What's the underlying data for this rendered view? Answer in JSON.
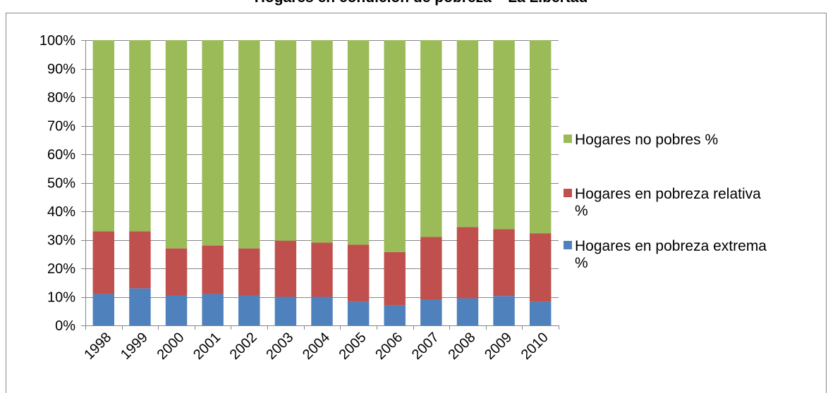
{
  "chart_data": {
    "type": "bar",
    "stacked": true,
    "percent_stacked": true,
    "title": "Hogares en condición de pobreza – La Libertad",
    "xlabel": "",
    "ylabel": "",
    "ylim": [
      0,
      100
    ],
    "y_ticks": [
      "0%",
      "10%",
      "20%",
      "30%",
      "40%",
      "50%",
      "60%",
      "70%",
      "80%",
      "90%",
      "100%"
    ],
    "grid": true,
    "legend_position": "right",
    "categories": [
      "1998",
      "1999",
      "2000",
      "2001",
      "2002",
      "2003",
      "2004",
      "2005",
      "2006",
      "2007",
      "2008",
      "2009",
      "2010"
    ],
    "series": [
      {
        "name": "Hogares en pobreza extrema %",
        "legend_lines": [
          "Hogares en pobreza extrema",
          "%"
        ],
        "color": "#4F81BD",
        "values": [
          11,
          13,
          10.5,
          11,
          10.5,
          10,
          10,
          8.3,
          7,
          9,
          9.5,
          10.3,
          8.3
        ]
      },
      {
        "name": "Hogares en pobreza relativa %",
        "legend_lines": [
          "Hogares en pobreza relativa",
          "%"
        ],
        "color": "#C0504D",
        "values": [
          22,
          20,
          16.5,
          17,
          16.5,
          19.7,
          19,
          20,
          18.7,
          22,
          25,
          23.4,
          24
        ]
      },
      {
        "name": "Hogares no pobres %",
        "legend_lines": [
          "Hogares no pobres %"
        ],
        "color": "#9BBB59",
        "values": [
          67,
          67,
          73,
          72,
          73,
          70.3,
          71,
          71.7,
          74.3,
          69,
          65.5,
          66.3,
          67.7
        ]
      }
    ]
  }
}
